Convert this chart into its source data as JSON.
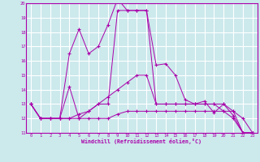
{
  "xlabel": "Windchill (Refroidissement éolien,°C)",
  "bg_color": "#cce9ec",
  "grid_color": "#ffffff",
  "line_color": "#aa00aa",
  "xlim": [
    -0.5,
    23.5
  ],
  "ylim": [
    11,
    20
  ],
  "xticks": [
    0,
    1,
    2,
    3,
    4,
    5,
    6,
    7,
    8,
    9,
    10,
    11,
    12,
    13,
    14,
    15,
    16,
    17,
    18,
    19,
    20,
    21,
    22,
    23
  ],
  "yticks": [
    11,
    12,
    13,
    14,
    15,
    16,
    17,
    18,
    19,
    20
  ],
  "series": [
    [
      13,
      12,
      12,
      12,
      12,
      12,
      12,
      12,
      12,
      12.3,
      12.5,
      12.5,
      12.5,
      12.5,
      12.5,
      12.5,
      12.5,
      12.5,
      12.5,
      12.5,
      12.5,
      12,
      11,
      11
    ],
    [
      13,
      12,
      12,
      12,
      12,
      12.3,
      12.5,
      13,
      13.5,
      14,
      14.5,
      15,
      15,
      13,
      13,
      13,
      13,
      13,
      13,
      13,
      13,
      12.5,
      12,
      11
    ],
    [
      13,
      12,
      12,
      12,
      16.5,
      18.2,
      16.5,
      17,
      18.5,
      20.3,
      19.5,
      19.5,
      19.5,
      15.7,
      15.8,
      15.0,
      13.3,
      13.0,
      13.2,
      12.4,
      13.0,
      12.2,
      11.0,
      11.0
    ],
    [
      13,
      12,
      12,
      12,
      14.2,
      12,
      12.5,
      13,
      13,
      19.5,
      19.5,
      19.5,
      19.5,
      13,
      13,
      13,
      13,
      13,
      13,
      13,
      12.5,
      12.5,
      11,
      11
    ]
  ]
}
